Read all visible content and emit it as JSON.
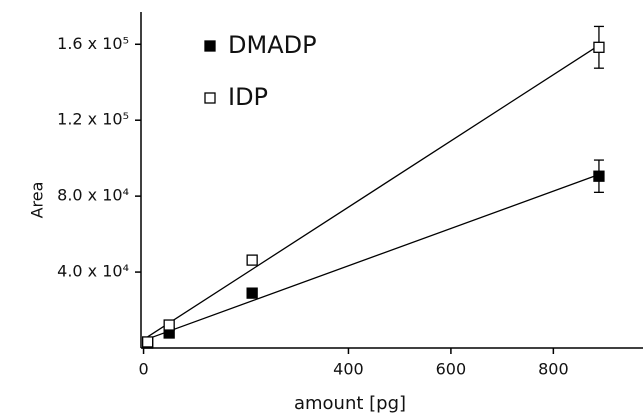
{
  "chart_data": {
    "type": "scatter",
    "x_label": "amount [pg]",
    "y_label": "Area",
    "xlim": [
      -5,
      975
    ],
    "ylim": [
      0,
      177000
    ],
    "xticks": [
      0,
      400,
      600,
      800
    ],
    "yticks": [
      {
        "value": 40000,
        "label": "4.0 x 10⁴"
      },
      {
        "value": 80000,
        "label": "8.0 x 10⁴"
      },
      {
        "value": 120000,
        "label": "1.2 x 10⁵"
      },
      {
        "value": 160000,
        "label": "1.6 x 10⁵"
      }
    ],
    "series": [
      {
        "name": "DMADP",
        "color": "#000000",
        "filled": true,
        "x": [
          8,
          50,
          212,
          889
        ],
        "values": [
          2600,
          7900,
          28900,
          90500
        ],
        "errors": [
          500,
          1000,
          2000,
          8500
        ]
      },
      {
        "name": "IDP",
        "color": "#000000",
        "filled": false,
        "x": [
          8,
          50,
          212,
          889
        ],
        "values": [
          3200,
          12100,
          46300,
          158400
        ],
        "errors": [
          500,
          1000,
          2500,
          11000
        ]
      }
    ],
    "fit_lines": true
  }
}
